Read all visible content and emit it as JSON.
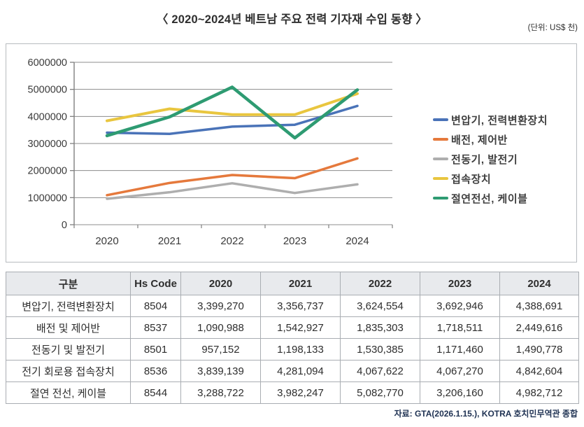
{
  "chart_data": {
    "type": "line",
    "title": "〈 2020~2024년 베트남 주요 전력 기자재 수입 동향 〉",
    "unit": "(단위: US$ 천)",
    "categories": [
      "2020",
      "2021",
      "2022",
      "2023",
      "2024"
    ],
    "series": [
      {
        "name": "변압기, 전력변환장치",
        "color": "#4a73b8",
        "width": 3.5,
        "values": [
          3399270,
          3356737,
          3624554,
          3692946,
          4388691
        ]
      },
      {
        "name": "배전, 제어반",
        "color": "#e5793c",
        "width": 3.5,
        "values": [
          1090988,
          1542927,
          1835303,
          1718511,
          2449616
        ]
      },
      {
        "name": "전동기, 발전기",
        "color": "#aeaeae",
        "width": 3.5,
        "values": [
          957152,
          1198133,
          1530385,
          1171460,
          1490778
        ]
      },
      {
        "name": "접속장치",
        "color": "#e9c63f",
        "width": 4,
        "values": [
          3839139,
          4281094,
          4067622,
          4067270,
          4842604
        ]
      },
      {
        "name": "절연전선, 케이블",
        "color": "#2e9b72",
        "width": 4.5,
        "values": [
          3288722,
          3982247,
          5082770,
          3206160,
          4982712
        ]
      }
    ],
    "ylim": [
      0,
      6000000
    ],
    "ytick_step": 1000000,
    "ytick_labels": [
      "0",
      "1000000",
      "2000000",
      "3000000",
      "4000000",
      "5000000",
      "6000000"
    ],
    "grid": true,
    "legend_position": "right"
  },
  "table": {
    "headers": [
      "구분",
      "Hs Code",
      "2020",
      "2021",
      "2022",
      "2023",
      "2024"
    ],
    "rows": [
      [
        "변압기, 전력변환장치",
        "8504",
        "3,399,270",
        "3,356,737",
        "3,624,554",
        "3,692,946",
        "4,388,691"
      ],
      [
        "배전 및 제어반",
        "8537",
        "1,090,988",
        "1,542,927",
        "1,835,303",
        "1,718,511",
        "2,449,616"
      ],
      [
        "전동기 및 발전기",
        "8501",
        "957,152",
        "1,198,133",
        "1,530,385",
        "1,171,460",
        "1,490,778"
      ],
      [
        "전기 회로용 접속장치",
        "8536",
        "3,839,139",
        "4,281,094",
        "4,067,622",
        "4,067,270",
        "4,842,604"
      ],
      [
        "절연 전선, 케이블",
        "8544",
        "3,288,722",
        "3,982,247",
        "5,082,770",
        "3,206,160",
        "4,982,712"
      ]
    ]
  },
  "source": {
    "text": "자료: GTA(2026.1.15.), KOTRA 호치민무역관 종합"
  },
  "colors": {
    "header_bg": "#e8eaed",
    "table_border": "#a9adb2",
    "panel_border": "#b7bbbf",
    "grid": "#8c8c8c",
    "axis": "#7f7f7f",
    "source_text": "#1e3152",
    "text": "#2e2e2e"
  }
}
